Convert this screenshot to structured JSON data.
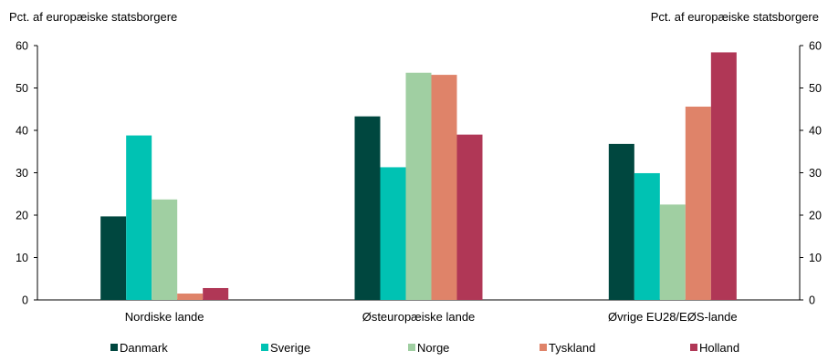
{
  "chart_data": {
    "type": "bar",
    "ylabel_left": "Pct. af europæiske statsborgere",
    "ylabel_right": "Pct. af europæiske statsborgere",
    "ylim": [
      0,
      60
    ],
    "yticks": [
      0,
      10,
      20,
      30,
      40,
      50,
      60
    ],
    "grid": false,
    "legend_position": "bottom",
    "categories": [
      "Nordiske lande",
      "Østeuropæiske lande",
      "Øvrige EU28/EØS-lande"
    ],
    "series": [
      {
        "name": "Danmark",
        "color": "#00473f",
        "values": [
          19.7,
          43.3,
          36.8
        ]
      },
      {
        "name": "Sverige",
        "color": "#00c2b3",
        "values": [
          38.8,
          31.3,
          29.9
        ]
      },
      {
        "name": "Norge",
        "color": "#a0cfa2",
        "values": [
          23.7,
          53.6,
          22.5
        ]
      },
      {
        "name": "Tyskland",
        "color": "#df8369",
        "values": [
          1.5,
          53.1,
          45.6
        ]
      },
      {
        "name": "Holland",
        "color": "#b03756",
        "values": [
          2.8,
          39.0,
          58.4
        ]
      }
    ]
  }
}
